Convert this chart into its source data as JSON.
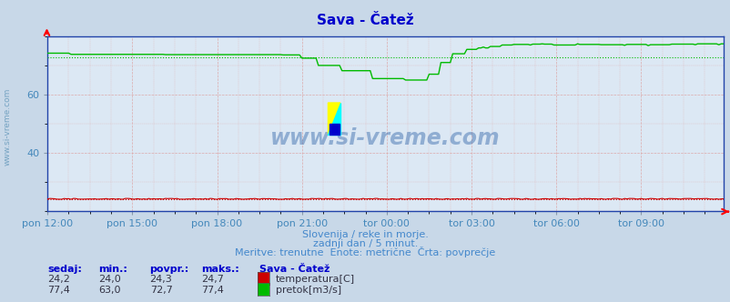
{
  "title": "Sava - Čatež",
  "bg_color": "#c8d8e8",
  "plot_bg_color": "#dce8f4",
  "grid_color_major": "#aaaacc",
  "grid_color_minor": "#ddaaaa",
  "title_color": "#0000cc",
  "label_color": "#4488bb",
  "text_color": "#4488cc",
  "spine_color": "#2244aa",
  "ylim": [
    20,
    80
  ],
  "yticks": [
    40,
    60
  ],
  "n_points": 288,
  "watermark": "www.si-vreme.com",
  "subtitle1": "Slovenija / reke in morje.",
  "subtitle2": "zadnji dan / 5 minut.",
  "subtitle3": "Meritve: trenutne  Enote: metrične  Črta: povprečje",
  "xlabel_ticks": [
    "pon 12:00",
    "pon 15:00",
    "pon 18:00",
    "pon 21:00",
    "tor 00:00",
    "tor 03:00",
    "tor 06:00",
    "tor 09:00"
  ],
  "temp_color": "#cc0000",
  "flow_color": "#00bb00",
  "temp_avg": 24.3,
  "flow_avg": 72.7,
  "temp_min": 24.0,
  "temp_max": 24.7,
  "temp_current": 24.2,
  "flow_min": 63.0,
  "flow_max": 77.4,
  "flow_current": 77.4,
  "legend_title": "Sava - Čatež",
  "legend_temp": "temperatura[C]",
  "legend_flow": "pretok[m3/s]",
  "col_headers": [
    "sedaj:",
    "min.:",
    "povpr.:",
    "maks.:"
  ]
}
